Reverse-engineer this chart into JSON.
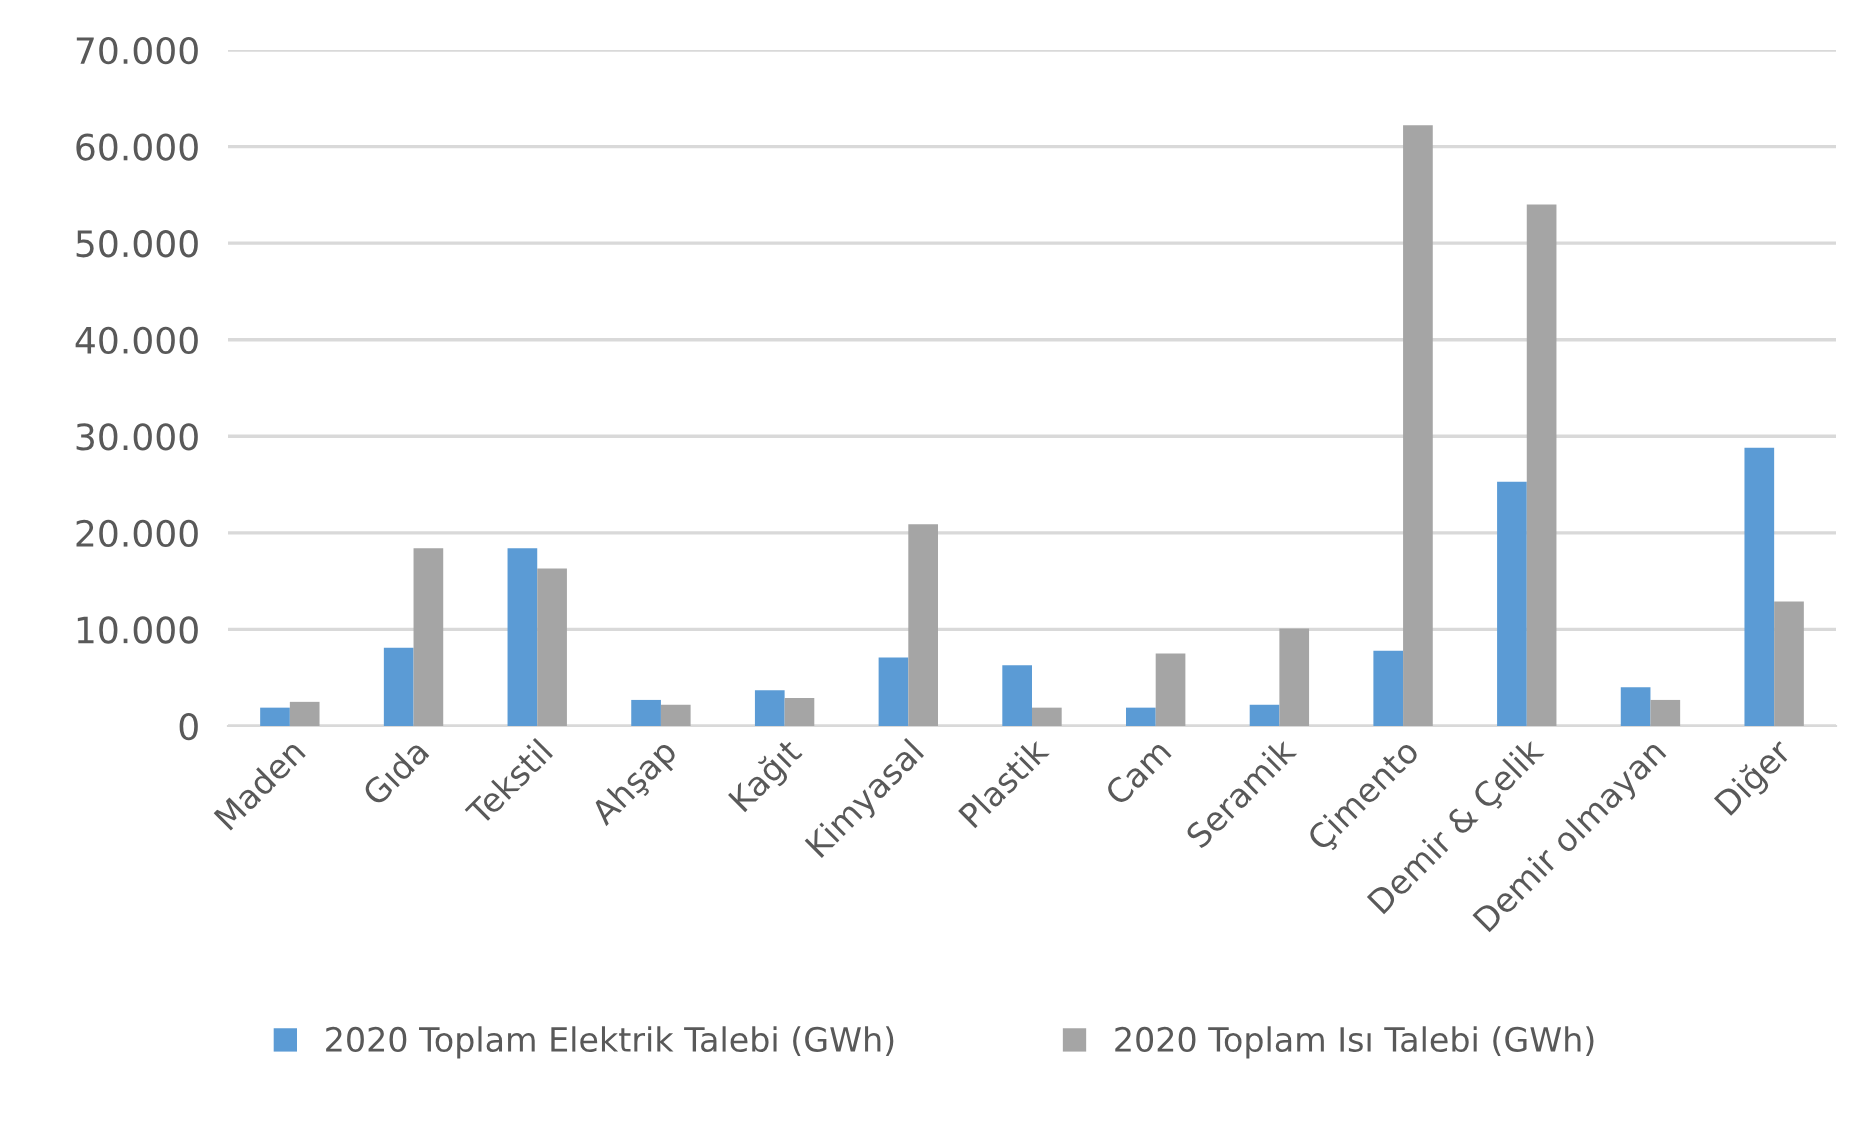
{
  "chart_data": {
    "type": "bar",
    "categories": [
      "Maden",
      "Gıda",
      "Tekstil",
      "Ahşap",
      "Kağıt",
      "Kimyasal",
      "Plastik",
      "Cam",
      "Seramik",
      "Çimento",
      "Demir & Çelik",
      "Demir olmayan",
      "Diğer"
    ],
    "series": [
      {
        "name": "2020 Toplam Elektrik Talebi (GWh)",
        "color": "#5b9bd5",
        "values": [
          1900,
          8100,
          18400,
          2700,
          3700,
          7100,
          6300,
          1900,
          2200,
          7800,
          25300,
          4000,
          28800
        ]
      },
      {
        "name": "2020 Toplam Isı Talebi (GWh)",
        "color": "#a5a5a5",
        "values": [
          2500,
          18400,
          16300,
          2200,
          2900,
          20900,
          1900,
          7500,
          10100,
          62200,
          54000,
          2700,
          12900
        ]
      }
    ],
    "ylim": [
      0,
      70000
    ],
    "yticks": [
      {
        "value": 0,
        "label": "0"
      },
      {
        "value": 10000,
        "label": "10.000"
      },
      {
        "value": 20000,
        "label": "20.000"
      },
      {
        "value": 30000,
        "label": "30.000"
      },
      {
        "value": 40000,
        "label": "40.000"
      },
      {
        "value": 50000,
        "label": "50.000"
      },
      {
        "value": 60000,
        "label": "60.000"
      },
      {
        "value": 70000,
        "label": "70.000"
      }
    ],
    "grid": "y",
    "legend": "bottom"
  }
}
